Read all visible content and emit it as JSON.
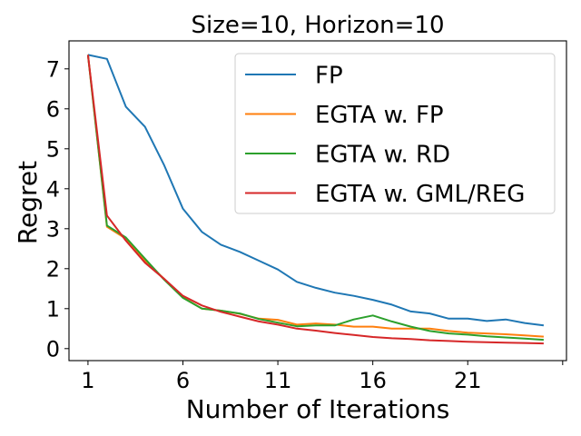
{
  "chart_data": {
    "type": "line",
    "title": "Size=10, Horizon=10",
    "xlabel": "Number of Iterations",
    "ylabel": "Regret",
    "xlim": [
      0,
      26.2
    ],
    "ylim": [
      -0.3,
      7.7
    ],
    "xticks": [
      1,
      6,
      11,
      16,
      21,
      26
    ],
    "xtick_labels": [
      "1",
      "6",
      "11",
      "16",
      "21",
      ""
    ],
    "yticks": [
      0,
      1,
      2,
      3,
      4,
      5,
      6,
      7
    ],
    "ytick_labels": [
      "0",
      "1",
      "2",
      "3",
      "4",
      "5",
      "6",
      "7"
    ],
    "legend_position": "top-right",
    "x": [
      1,
      2,
      3,
      4,
      5,
      6,
      7,
      8,
      9,
      10,
      11,
      12,
      13,
      14,
      15,
      16,
      17,
      18,
      19,
      20,
      21,
      22,
      23,
      24,
      25
    ],
    "series": [
      {
        "name": "FP",
        "color": "#1f77b4",
        "values": [
          7.35,
          7.25,
          6.05,
          5.55,
          4.6,
          3.5,
          2.92,
          2.6,
          2.42,
          2.2,
          1.98,
          1.67,
          1.52,
          1.4,
          1.32,
          1.22,
          1.1,
          0.93,
          0.88,
          0.75,
          0.75,
          0.69,
          0.73,
          0.64,
          0.58
        ]
      },
      {
        "name": "EGTA w. FP",
        "color": "#ff7f0e",
        "values": [
          7.35,
          3.05,
          2.75,
          2.2,
          1.75,
          1.28,
          1.0,
          0.95,
          0.87,
          0.75,
          0.72,
          0.6,
          0.63,
          0.6,
          0.55,
          0.55,
          0.5,
          0.5,
          0.5,
          0.44,
          0.4,
          0.38,
          0.36,
          0.33,
          0.3
        ]
      },
      {
        "name": "EGTA w. RD",
        "color": "#2ca02c",
        "values": [
          7.35,
          3.08,
          2.78,
          2.25,
          1.73,
          1.27,
          1.0,
          0.95,
          0.88,
          0.74,
          0.65,
          0.56,
          0.58,
          0.58,
          0.73,
          0.83,
          0.68,
          0.55,
          0.44,
          0.38,
          0.35,
          0.31,
          0.28,
          0.25,
          0.22
        ]
      },
      {
        "name": "EGTA w. GML/REG",
        "color": "#d62728",
        "values": [
          7.35,
          3.33,
          2.7,
          2.15,
          1.75,
          1.32,
          1.08,
          0.92,
          0.8,
          0.68,
          0.6,
          0.5,
          0.45,
          0.39,
          0.34,
          0.29,
          0.26,
          0.24,
          0.21,
          0.19,
          0.17,
          0.16,
          0.15,
          0.14,
          0.13
        ]
      }
    ]
  }
}
